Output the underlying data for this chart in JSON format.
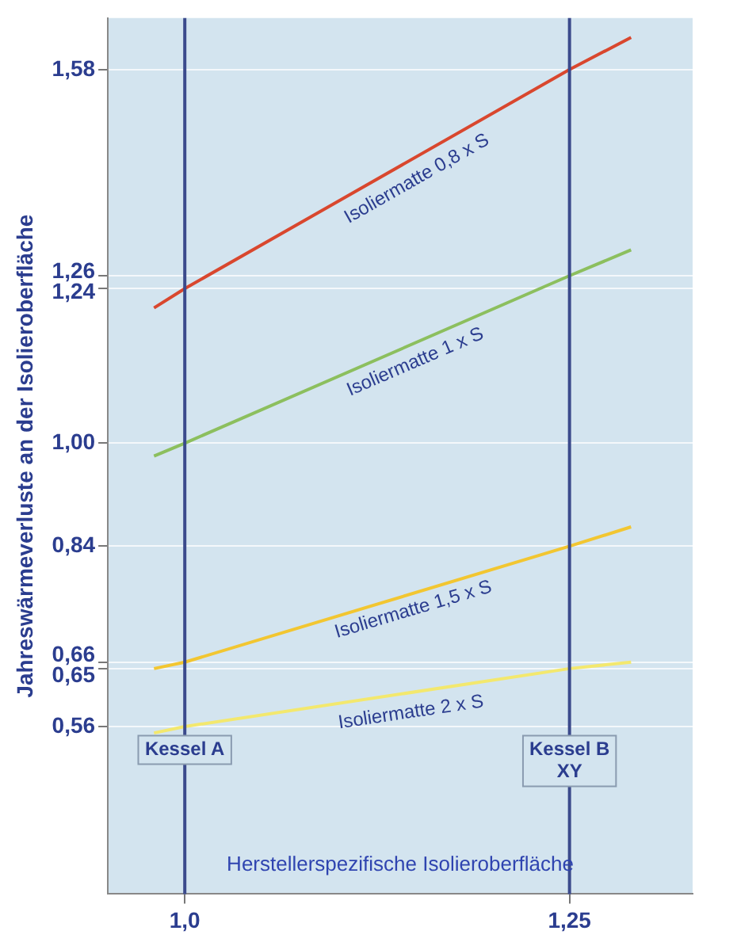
{
  "chart_data": {
    "type": "line",
    "ylabel": "Jahreswärmeverluste an der Isolieroberfläche",
    "xlabel": "Herstellerspezifische Isolieroberfläche",
    "x": [
      0.98,
      1.0,
      1.25,
      1.29
    ],
    "series": [
      {
        "name": "Isoliermatte 0,8 x S",
        "color": "#d9472e",
        "values": [
          1.21,
          1.24,
          1.58,
          1.63
        ]
      },
      {
        "name": "Isoliermatte 1 x S",
        "color": "#8cbf5e",
        "values": [
          0.98,
          1.0,
          1.26,
          1.3
        ]
      },
      {
        "name": "Isoliermatte 1,5 x S",
        "color": "#f2c631",
        "values": [
          0.65,
          0.66,
          0.84,
          0.87
        ]
      },
      {
        "name": "Isoliermatte 2 x S",
        "color": "#f3e86e",
        "values": [
          0.55,
          0.56,
          0.65,
          0.66
        ]
      }
    ],
    "xlim": [
      0.95,
      1.33
    ],
    "xticks": [
      {
        "value": 1.0,
        "label": "1,0"
      },
      {
        "value": 1.25,
        "label": "1,25"
      }
    ],
    "ylim": [
      0.3,
      1.66
    ],
    "yticks": [
      {
        "value": 0.56,
        "label": "0,56"
      },
      {
        "value": 0.65,
        "label": "0,65"
      },
      {
        "value": 0.66,
        "label": "0,66"
      },
      {
        "value": 0.84,
        "label": "0,84"
      },
      {
        "value": 1.0,
        "label": "1,00"
      },
      {
        "value": 1.24,
        "label": "1,24"
      },
      {
        "value": 1.26,
        "label": "1,26"
      },
      {
        "value": 1.58,
        "label": "1,58"
      }
    ],
    "ref_lines": [
      {
        "axis": "x",
        "value": 1.0,
        "label": "Kessel A",
        "color": "#3b4a8c"
      },
      {
        "axis": "x",
        "value": 1.25,
        "label": "Kessel B XY",
        "color": "#3b4a8c"
      }
    ],
    "grid": "y",
    "legend": false,
    "marker": "none",
    "line_style": "solid"
  }
}
